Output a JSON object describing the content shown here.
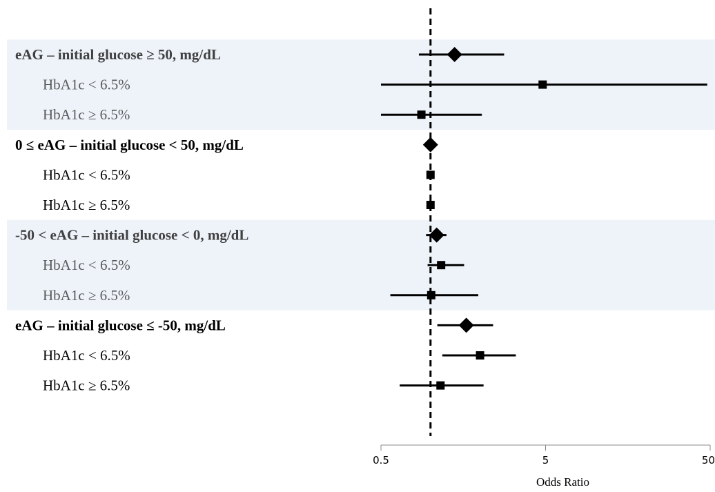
{
  "chart_data": {
    "type": "forest",
    "xlabel": "Odds Ratio",
    "xscale": "log",
    "xlim": [
      0.5,
      50
    ],
    "xticks": [
      {
        "value": 0.5,
        "label": "0.5"
      },
      {
        "value": 5,
        "label": "5"
      },
      {
        "value": 50,
        "label": "50"
      }
    ],
    "reference_line": 1,
    "colors": {
      "band": "#eef3fa",
      "marker": "#000000"
    },
    "rows": [
      {
        "label": "eAG – initial glucose ≥ 50, mg/dL",
        "type": "group",
        "shaded": true,
        "or": 1.4,
        "ci": [
          0.85,
          2.8
        ]
      },
      {
        "label": "HbA1c < 6.5%",
        "type": "subgroup",
        "shaded": true,
        "or": 4.8,
        "ci": [
          0.5,
          48
        ]
      },
      {
        "label": "HbA1c ≥ 6.5%",
        "type": "subgroup",
        "shaded": true,
        "or": 0.88,
        "ci": [
          0.5,
          2.05
        ]
      },
      {
        "label": "0 ≤ eAG – initial glucose < 50, mg/dL",
        "type": "group",
        "shaded": false,
        "or": 1.0,
        "ci": [
          1.0,
          1.0
        ]
      },
      {
        "label": "HbA1c < 6.5%",
        "type": "subgroup",
        "shaded": false,
        "or": 1.0,
        "ci": [
          1.0,
          1.0
        ]
      },
      {
        "label": "HbA1c ≥ 6.5%",
        "type": "subgroup",
        "shaded": false,
        "or": 1.0,
        "ci": [
          1.0,
          1.0
        ]
      },
      {
        "label": "-50 < eAG – initial glucose < 0, mg/dL",
        "type": "group",
        "shaded": true,
        "or": 1.09,
        "ci": [
          0.94,
          1.25
        ]
      },
      {
        "label": "HbA1c < 6.5%",
        "type": "subgroup",
        "shaded": true,
        "or": 1.16,
        "ci": [
          0.96,
          1.6
        ]
      },
      {
        "label": "HbA1c ≥ 6.5%",
        "type": "subgroup",
        "shaded": true,
        "or": 1.01,
        "ci": [
          0.57,
          1.95
        ]
      },
      {
        "label": "eAG – initial glucose ≤ -50, mg/dL",
        "type": "group",
        "shaded": false,
        "or": 1.65,
        "ci": [
          1.1,
          2.4
        ]
      },
      {
        "label": "HbA1c < 6.5%",
        "type": "subgroup",
        "shaded": false,
        "or": 2.0,
        "ci": [
          1.18,
          3.3
        ]
      },
      {
        "label": "HbA1c ≥ 6.5%",
        "type": "subgroup",
        "shaded": false,
        "or": 1.15,
        "ci": [
          0.65,
          2.1
        ]
      }
    ]
  }
}
